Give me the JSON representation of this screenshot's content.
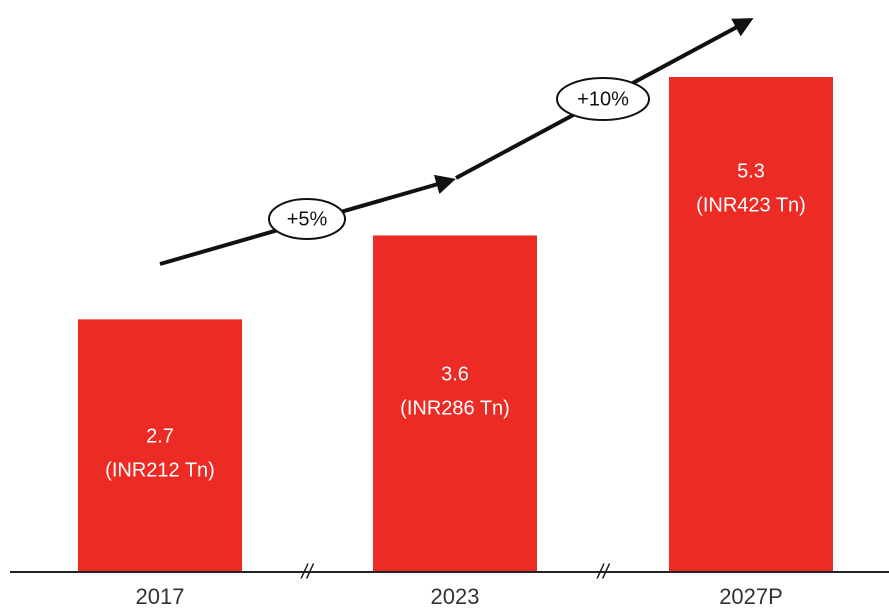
{
  "chart_data": {
    "type": "bar",
    "categories": [
      "2017",
      "2023",
      "2027P"
    ],
    "values": [
      2.7,
      3.6,
      5.3
    ],
    "secondary_labels": [
      "(INR212 Tn)",
      "(INR286 Tn)",
      "(INR423 Tn)"
    ],
    "color": "#ec2b24",
    "annotations": [
      "+5%",
      "+10%"
    ],
    "axis_break": "//"
  }
}
